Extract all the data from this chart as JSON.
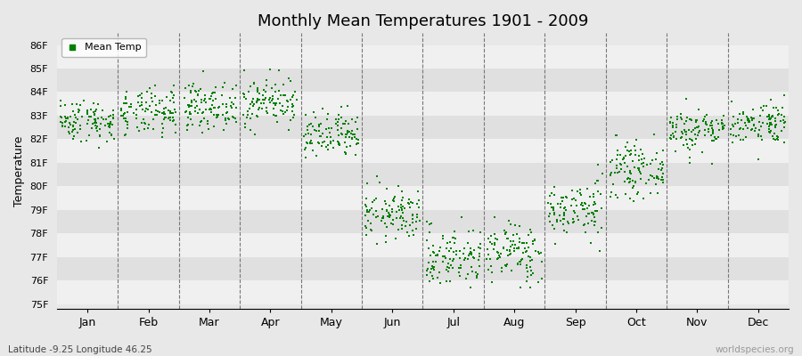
{
  "title": "Monthly Mean Temperatures 1901 - 2009",
  "ylabel": "Temperature",
  "xlabel_bottom": "Latitude -9.25 Longitude 46.25",
  "watermark": "worldspecies.org",
  "legend_label": "Mean Temp",
  "marker_color": "#008000",
  "bg_color": "#e8e8e8",
  "band_light": "#f0f0f0",
  "band_dark": "#e0e0e0",
  "ylim": [
    74.8,
    86.5
  ],
  "yticks": [
    75,
    76,
    77,
    78,
    79,
    80,
    81,
    82,
    83,
    84,
    85,
    86
  ],
  "ytick_labels": [
    "75F",
    "76F",
    "77F",
    "78F",
    "79F",
    "80F",
    "81F",
    "82F",
    "83F",
    "84F",
    "85F",
    "86F"
  ],
  "months": [
    "Jan",
    "Feb",
    "Mar",
    "Apr",
    "May",
    "Jun",
    "Jul",
    "Aug",
    "Sep",
    "Oct",
    "Nov",
    "Dec"
  ],
  "month_means": [
    82.8,
    83.1,
    83.4,
    83.6,
    82.1,
    78.8,
    77.0,
    77.2,
    79.0,
    80.7,
    82.4,
    82.7
  ],
  "month_stds": [
    0.45,
    0.5,
    0.48,
    0.52,
    0.52,
    0.55,
    0.65,
    0.65,
    0.6,
    0.55,
    0.48,
    0.45
  ],
  "n_years": 109,
  "random_seed": 42
}
